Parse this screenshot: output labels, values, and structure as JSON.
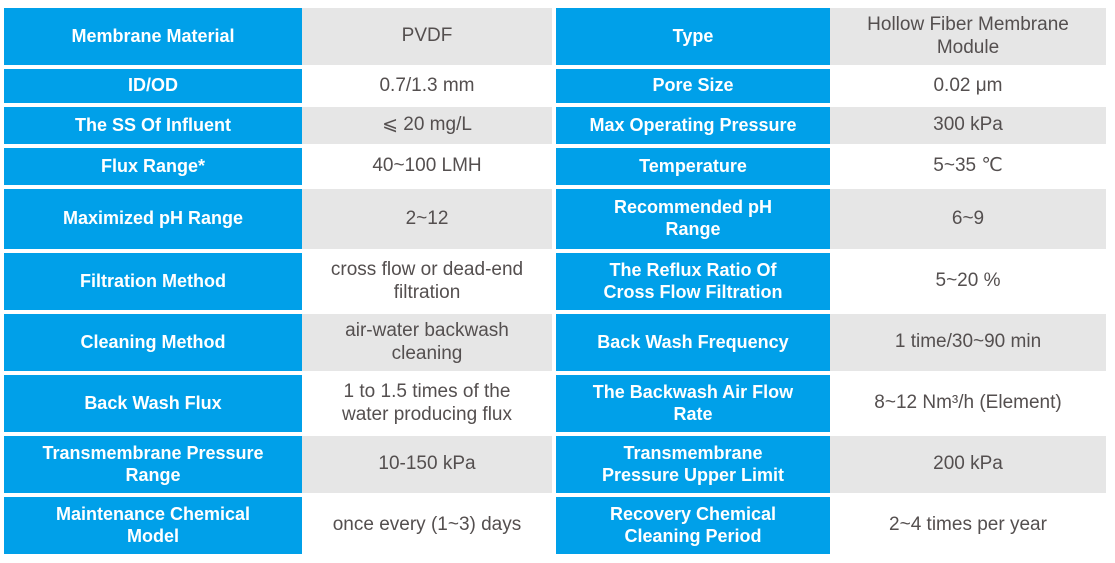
{
  "colors": {
    "header_blue": "#00a0e9",
    "alt_row_gray": "#e6e6e6",
    "value_text_gray": "#544f4f",
    "label_text_white": "#ffffff"
  },
  "table": {
    "rows": [
      {
        "left_label": "Membrane Material",
        "left_value": "PVDF",
        "right_label": "Type",
        "right_value": "Hollow Fiber Membrane\nModule"
      },
      {
        "left_label": "ID/OD",
        "left_value": "0.7/1.3 mm",
        "right_label": "Pore Size",
        "right_value": "0.02 μm"
      },
      {
        "left_label": "The SS Of Influent",
        "left_value": "⩽ 20 mg/L",
        "right_label": "Max Operating Pressure",
        "right_value": "300 kPa"
      },
      {
        "left_label": "Flux Range*",
        "left_value": "40~100 LMH",
        "right_label": "Temperature",
        "right_value": "5~35 ℃"
      },
      {
        "left_label": "Maximized pH Range",
        "left_value": "2~12",
        "right_label": "Recommended pH\nRange",
        "right_value": "6~9"
      },
      {
        "left_label": "Filtration Method",
        "left_value": "cross flow or dead-end\nfiltration",
        "right_label": "The Reflux Ratio Of\nCross Flow Filtration",
        "right_value": "5~20 %"
      },
      {
        "left_label": "Cleaning Method",
        "left_value": "air-water backwash\ncleaning",
        "right_label": "Back Wash Frequency",
        "right_value": "1 time/30~90 min"
      },
      {
        "left_label": "Back Wash Flux",
        "left_value": "1 to 1.5 times of the\nwater producing flux",
        "right_label": "The Backwash Air Flow\nRate",
        "right_value": "8~12 Nm³/h (Element)"
      },
      {
        "left_label": "Transmembrane Pressure\nRange",
        "left_value": "10-150 kPa",
        "right_label": "Transmembrane\nPressure Upper Limit",
        "right_value": "200 kPa"
      },
      {
        "left_label": "Maintenance Chemical\nModel",
        "left_value": "once every (1~3) days",
        "right_label": "Recovery Chemical\nCleaning Period",
        "right_value": "2~4 times per year"
      }
    ]
  }
}
